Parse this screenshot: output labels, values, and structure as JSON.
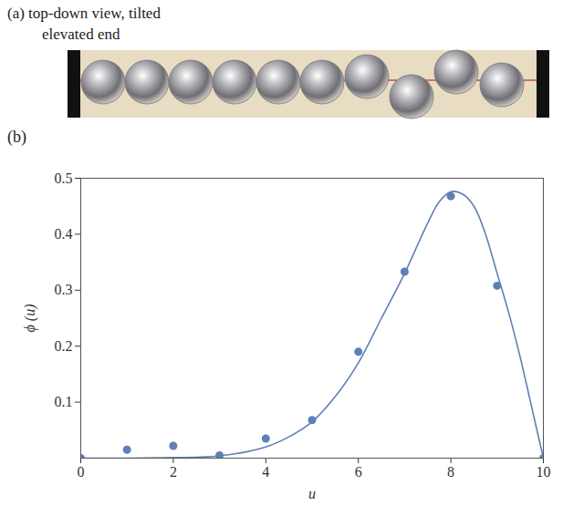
{
  "photo_panel": {
    "label": "(a)",
    "caption": "top-down view, tilted",
    "note": "elevated end"
  },
  "chart_data": {
    "type": "line",
    "panel_label": "(b)",
    "x_label": "u",
    "y_label": "ϕ (u)",
    "xlim": [
      0,
      10
    ],
    "xticks": [
      0,
      2,
      4,
      6,
      8,
      10
    ],
    "ylim": [
      0,
      0.5
    ],
    "yticks": [
      0.1,
      0.2,
      0.3,
      0.4,
      0.5
    ],
    "grid": false,
    "series": [
      {
        "type": "line",
        "color": "#5e81b5",
        "line_style": "solid",
        "x": [
          0,
          1,
          2,
          3,
          4,
          4.5,
          5,
          5.5,
          6,
          6.5,
          7,
          7.5,
          7.75,
          8,
          8.25,
          8.5,
          8.75,
          9,
          9.25,
          9.5,
          9.75,
          10
        ],
        "values": [
          0,
          0,
          0.001,
          0.004,
          0.02,
          0.038,
          0.065,
          0.11,
          0.17,
          0.25,
          0.33,
          0.42,
          0.458,
          0.476,
          0.472,
          0.45,
          0.4,
          0.33,
          0.26,
          0.18,
          0.09,
          0
        ]
      },
      {
        "type": "scatter",
        "color": "#5e81b5",
        "marker": "circle",
        "x": [
          0,
          1,
          2,
          3,
          4,
          5,
          6,
          7,
          8,
          9,
          10
        ],
        "values": [
          0,
          0.015,
          0.022,
          0.005,
          0.035,
          0.068,
          0.19,
          0.333,
          0.468,
          0.308,
          0
        ]
      }
    ]
  }
}
